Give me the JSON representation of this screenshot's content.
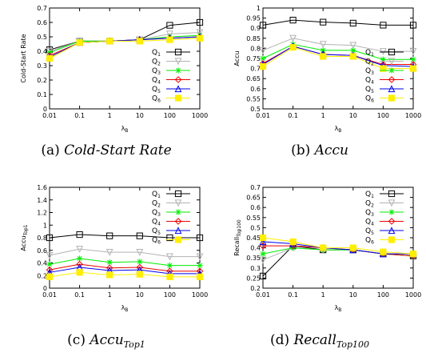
{
  "legend_series": [
    {
      "label": "Q",
      "sub": "1",
      "color": "#000000",
      "marker": "square"
    },
    {
      "label": "Q",
      "sub": "2",
      "color": "#b3b3b3",
      "marker": "triangle-down"
    },
    {
      "label": "Q",
      "sub": "3",
      "color": "#00ee00",
      "marker": "star"
    },
    {
      "label": "Q",
      "sub": "4",
      "color": "#ee0000",
      "marker": "diamond"
    },
    {
      "label": "Q",
      "sub": "5",
      "color": "#0000ee",
      "marker": "triangle-up"
    },
    {
      "label": "Q",
      "sub": "6",
      "color": "#ffee00",
      "marker": "filled-square"
    }
  ],
  "captions": [
    {
      "prefix": "(a) ",
      "title": "Cold-Start Rate",
      "sub": ""
    },
    {
      "prefix": "(b) ",
      "title": "Accu",
      "sub": ""
    },
    {
      "prefix": "(c) ",
      "title": "Accu",
      "sub": "Top1"
    },
    {
      "prefix": "(d) ",
      "title": "Recall",
      "sub": "Top100"
    }
  ],
  "chart_data": [
    {
      "type": "line",
      "xlabel": "λ",
      "xlabel_sub": "B",
      "ylabel": "Cold-Start Rate",
      "ylabel_sub": "",
      "x": [
        "0.01",
        "0.1",
        "1",
        "10",
        "100",
        "1000"
      ],
      "yticks": [
        "0",
        "0.1",
        "0.2",
        "0.3",
        "0.4",
        "0.5",
        "0.6",
        "0.7"
      ],
      "ylim": [
        0,
        0.7
      ],
      "legend_position": "bottom-right",
      "grid": false,
      "series": [
        {
          "name": "Q1",
          "values": [
            0.41,
            0.47,
            0.47,
            0.48,
            0.58,
            0.6
          ]
        },
        {
          "name": "Q2",
          "values": [
            0.4,
            0.47,
            0.47,
            0.48,
            0.52,
            0.53
          ]
        },
        {
          "name": "Q3",
          "values": [
            0.39,
            0.47,
            0.47,
            0.48,
            0.5,
            0.51
          ]
        },
        {
          "name": "Q4",
          "values": [
            0.37,
            0.46,
            0.47,
            0.48,
            0.49,
            0.5
          ]
        },
        {
          "name": "Q5",
          "values": [
            0.36,
            0.46,
            0.47,
            0.48,
            0.49,
            0.5
          ]
        },
        {
          "name": "Q6",
          "values": [
            0.35,
            0.46,
            0.47,
            0.47,
            0.48,
            0.49
          ]
        }
      ]
    },
    {
      "type": "line",
      "xlabel": "λ",
      "xlabel_sub": "B",
      "ylabel": "Accu",
      "ylabel_sub": "",
      "x": [
        "0.01",
        "0.1",
        "1",
        "10",
        "100",
        "1000"
      ],
      "yticks": [
        "0.5",
        "0.55",
        "0.6",
        "0.65",
        "0.7",
        "0.75",
        "0.8",
        "0.85",
        "0.9",
        "0.95",
        "1"
      ],
      "ylim": [
        0.5,
        1
      ],
      "legend_position": "bottom-right",
      "grid": false,
      "series": [
        {
          "name": "Q1",
          "values": [
            0.915,
            0.94,
            0.93,
            0.925,
            0.915,
            0.915
          ]
        },
        {
          "name": "Q2",
          "values": [
            0.79,
            0.85,
            0.82,
            0.815,
            0.785,
            0.785
          ]
        },
        {
          "name": "Q3",
          "values": [
            0.75,
            0.82,
            0.79,
            0.79,
            0.745,
            0.745
          ]
        },
        {
          "name": "Q4",
          "values": [
            0.725,
            0.81,
            0.77,
            0.765,
            0.72,
            0.72
          ]
        },
        {
          "name": "Q5",
          "values": [
            0.72,
            0.81,
            0.77,
            0.765,
            0.715,
            0.71
          ]
        },
        {
          "name": "Q6",
          "values": [
            0.71,
            0.805,
            0.76,
            0.76,
            0.7,
            0.7
          ]
        }
      ]
    },
    {
      "type": "line",
      "xlabel": "λ",
      "xlabel_sub": "B",
      "ylabel": "Accu",
      "ylabel_sub": "Top1",
      "x": [
        "0.01",
        "0.1",
        "1",
        "10",
        "100",
        "1000"
      ],
      "yticks": [
        "0",
        "0.2",
        "0.4",
        "0.6",
        "0.8",
        "1",
        "1.2",
        "1.4",
        "1.6"
      ],
      "ylim": [
        0,
        1.6
      ],
      "legend_position": "top-right",
      "grid": false,
      "series": [
        {
          "name": "Q1",
          "values": [
            0.8,
            0.85,
            0.83,
            0.83,
            0.8,
            0.8
          ]
        },
        {
          "name": "Q2",
          "values": [
            0.52,
            0.62,
            0.57,
            0.57,
            0.5,
            0.5
          ]
        },
        {
          "name": "Q3",
          "values": [
            0.38,
            0.47,
            0.41,
            0.42,
            0.36,
            0.36
          ]
        },
        {
          "name": "Q4",
          "values": [
            0.29,
            0.38,
            0.32,
            0.33,
            0.27,
            0.27
          ]
        },
        {
          "name": "Q5",
          "values": [
            0.25,
            0.33,
            0.28,
            0.29,
            0.23,
            0.23
          ]
        },
        {
          "name": "Q6",
          "values": [
            0.18,
            0.25,
            0.21,
            0.22,
            0.18,
            0.18
          ]
        }
      ]
    },
    {
      "type": "line",
      "xlabel": "λ",
      "xlabel_sub": "B",
      "ylabel": "Recall",
      "ylabel_sub": "Top100",
      "x": [
        "0.01",
        "0.1",
        "1",
        "10",
        "100",
        "1000"
      ],
      "yticks": [
        "0.2",
        "0.25",
        "0.3",
        "0.35",
        "0.4",
        "0.45",
        "0.5",
        "0.55",
        "0.6",
        "0.65",
        "0.7"
      ],
      "ylim": [
        0.2,
        0.7
      ],
      "legend_position": "top-right",
      "grid": false,
      "series": [
        {
          "name": "Q1",
          "values": [
            0.26,
            0.41,
            0.39,
            0.39,
            0.37,
            0.36
          ]
        },
        {
          "name": "Q2",
          "values": [
            0.34,
            0.4,
            0.39,
            0.39,
            0.37,
            0.36
          ]
        },
        {
          "name": "Q3",
          "values": [
            0.37,
            0.4,
            0.39,
            0.39,
            0.37,
            0.36
          ]
        },
        {
          "name": "Q4",
          "values": [
            0.41,
            0.41,
            0.4,
            0.39,
            0.37,
            0.36
          ]
        },
        {
          "name": "Q5",
          "values": [
            0.43,
            0.42,
            0.4,
            0.39,
            0.37,
            0.37
          ]
        },
        {
          "name": "Q6",
          "values": [
            0.45,
            0.43,
            0.4,
            0.4,
            0.38,
            0.37
          ]
        }
      ]
    }
  ]
}
